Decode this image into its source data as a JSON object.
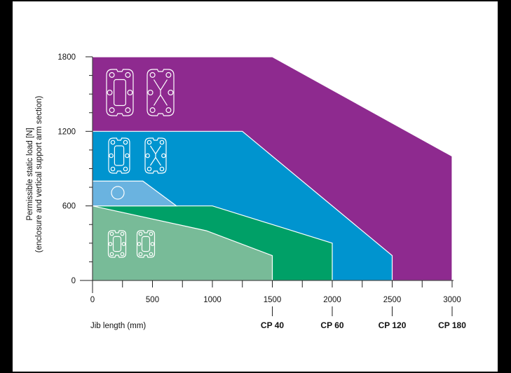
{
  "chart_data": {
    "type": "area",
    "xlabel": "Jib length (mm)",
    "ylabel": "Permissible static load [N]",
    "ylabel_sub": "(enclosure and vertical support arm section)",
    "xlim": [
      0,
      3000
    ],
    "ylim": [
      0,
      1800
    ],
    "x_ticks": [
      0,
      500,
      1000,
      1500,
      2000,
      2500,
      3000
    ],
    "y_ticks": [
      0,
      600,
      1200,
      1800
    ],
    "x_tick_labels": [
      "0",
      "500",
      "1000",
      "1500",
      "2000",
      "2500",
      "3000"
    ],
    "y_tick_labels": [
      "0",
      "600",
      "1200",
      "1800"
    ],
    "grid": false,
    "series": [
      {
        "name": "CP 180",
        "color": "#8e2a8f",
        "x": [
          0,
          1500,
          3000,
          3000
        ],
        "y": [
          1800,
          1800,
          1000,
          0
        ]
      },
      {
        "name": "CP 120",
        "color": "#0094cf",
        "x": [
          0,
          1250,
          2500,
          2500
        ],
        "y": [
          1200,
          1200,
          200,
          0
        ]
      },
      {
        "name": "CP 60",
        "color": "#00a067",
        "x": [
          0,
          1000,
          2000,
          2000
        ],
        "y": [
          600,
          600,
          300,
          0
        ]
      },
      {
        "name": "CP 40 (small section)",
        "color": "#78bb98",
        "x": [
          0,
          950,
          1500,
          1500
        ],
        "y": [
          600,
          400,
          200,
          0
        ]
      },
      {
        "name": "Round tube section",
        "color": "#6ab3e0",
        "x": [
          0,
          420,
          700
        ],
        "y": [
          800,
          800,
          600
        ]
      }
    ],
    "model_markers": [
      {
        "label": "CP 40",
        "x": 1500
      },
      {
        "label": "CP 60",
        "x": 2000
      },
      {
        "label": "CP 120",
        "x": 2500
      },
      {
        "label": "CP 180",
        "x": 3000
      }
    ]
  }
}
